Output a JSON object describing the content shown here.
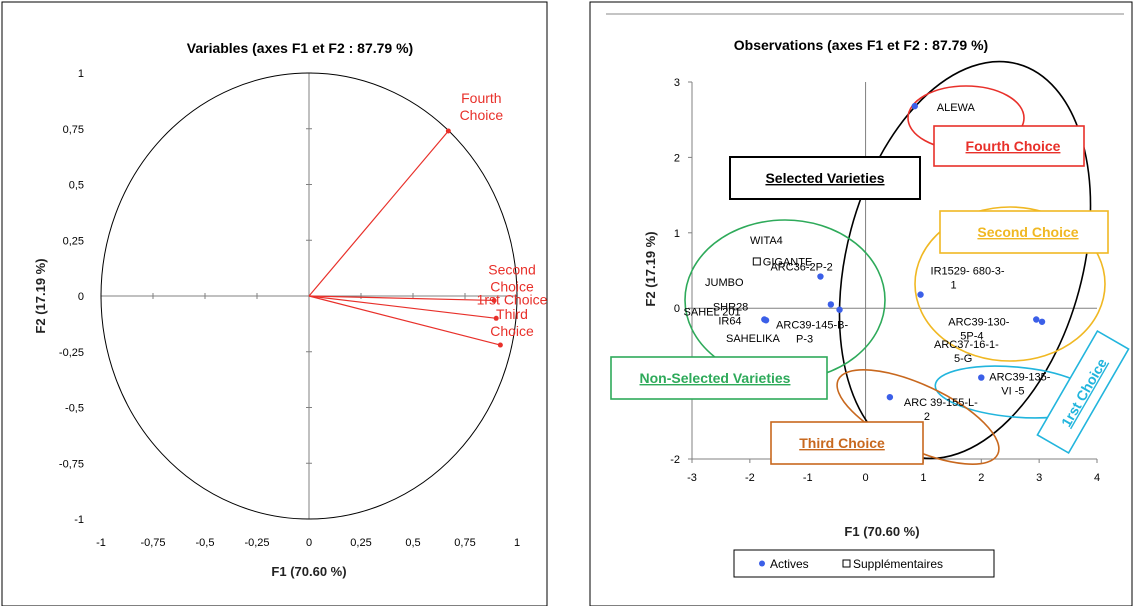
{
  "chart_data": [
    {
      "type": "scatter",
      "title": "Variables (axes F1 et F2 : 87.79 %)",
      "xlabel": "F1 (70.60 %)",
      "ylabel": "F2 (17.19 %)",
      "xlim": [
        -1,
        1
      ],
      "ylim": [
        -1,
        1
      ],
      "xticks": [
        "-1",
        "-0,75",
        "-0,5",
        "-0,25",
        "0",
        "0,25",
        "0,5",
        "0,75",
        "1"
      ],
      "yticks": [
        "1",
        "0,75",
        "0,5",
        "0,25",
        "0",
        "-0,25",
        "-0,5",
        "-0,75",
        "-1"
      ],
      "vectors": [
        {
          "name": "Fourth Choice",
          "lines": [
            "Fourth",
            "Choice"
          ],
          "x": 0.67,
          "y": 0.74
        },
        {
          "name": "Second Choice",
          "lines": [
            "Second",
            "Choice"
          ],
          "x": 0.89,
          "y": -0.02
        },
        {
          "name": "1rst Choice",
          "lines": [
            "1rst Choice"
          ],
          "x": 0.9,
          "y": -0.1
        },
        {
          "name": "Third Choice",
          "lines": [
            "Third",
            "Choice"
          ],
          "x": 0.92,
          "y": -0.22
        }
      ],
      "colors": {
        "vector": "#e8302a",
        "circle": "#000000"
      }
    },
    {
      "type": "scatter",
      "title": "Observations (axes F1 et F2 : 87.79 %)",
      "xlabel": "F1 (70.60 %)",
      "ylabel": "F2 (17.19 %)",
      "xlim": [
        -3,
        4
      ],
      "ylim": [
        -2,
        3
      ],
      "xticks": [
        "-3",
        "-2",
        "-1",
        "0",
        "1",
        "2",
        "3",
        "4"
      ],
      "yticks": [
        "3",
        "2",
        "1",
        "0",
        "-1",
        "-2"
      ],
      "points": [
        {
          "label": [
            "ALEWA"
          ],
          "x": 0.85,
          "y": 2.68,
          "kind": "active"
        },
        {
          "label": [
            "IR1529- 680-3-",
            "1"
          ],
          "x": 0.95,
          "y": 0.18,
          "kind": "active"
        },
        {
          "label": [
            "ARC39-130-",
            "5P-4"
          ],
          "x": 2.95,
          "y": -0.15,
          "kind": "active"
        },
        {
          "label": [
            "ARC37-16-1-",
            "5-G"
          ],
          "x": 3.05,
          "y": -0.18,
          "kind": "active"
        },
        {
          "label": [
            "ARC39-135-",
            "VI -5"
          ],
          "x": 2.0,
          "y": -0.92,
          "kind": "active"
        },
        {
          "label": [
            "ARC 39-155-L-",
            "2"
          ],
          "x": 0.42,
          "y": -1.18,
          "kind": "active"
        },
        {
          "label": [
            "ARC36-2P-2"
          ],
          "x": -0.78,
          "y": 0.42,
          "kind": "active"
        },
        {
          "label": [
            "SHR28"
          ],
          "x": -0.6,
          "y": 0.05,
          "kind": "active"
        },
        {
          "label": [
            "SAHEL 201"
          ],
          "x": -0.45,
          "y": -0.02,
          "kind": "active"
        },
        {
          "label": [
            "IR64"
          ],
          "x": -1.75,
          "y": -0.15,
          "kind": "active"
        },
        {
          "label": [
            "ARC39-145-B-",
            "P-3"
          ],
          "x": -1.72,
          "y": -0.16,
          "kind": "active"
        },
        {
          "label": [
            "GIGANTE"
          ],
          "x": -1.88,
          "y": 0.62,
          "kind": "supplementary"
        }
      ],
      "other_labels": [
        "WITA4",
        "JUMBO",
        "SAHELIKA"
      ],
      "groups": [
        {
          "label": "Selected Varieties",
          "color": "#000000"
        },
        {
          "label": "Fourth Choice",
          "color": "#e8302a"
        },
        {
          "label": "Second Choice",
          "color": "#f0b823"
        },
        {
          "label": "Non-Selected Varieties",
          "color": "#2eaa5a"
        },
        {
          "label": "1rst Choice",
          "color": "#22b5dd"
        },
        {
          "label": "Third Choice",
          "color": "#c8681e"
        }
      ],
      "legend": {
        "placement": "bottom",
        "entries": [
          "Actives",
          "Supplémentaires"
        ]
      },
      "colors": {
        "active": "#3b5fe8",
        "supplementary": "#000000"
      }
    }
  ]
}
